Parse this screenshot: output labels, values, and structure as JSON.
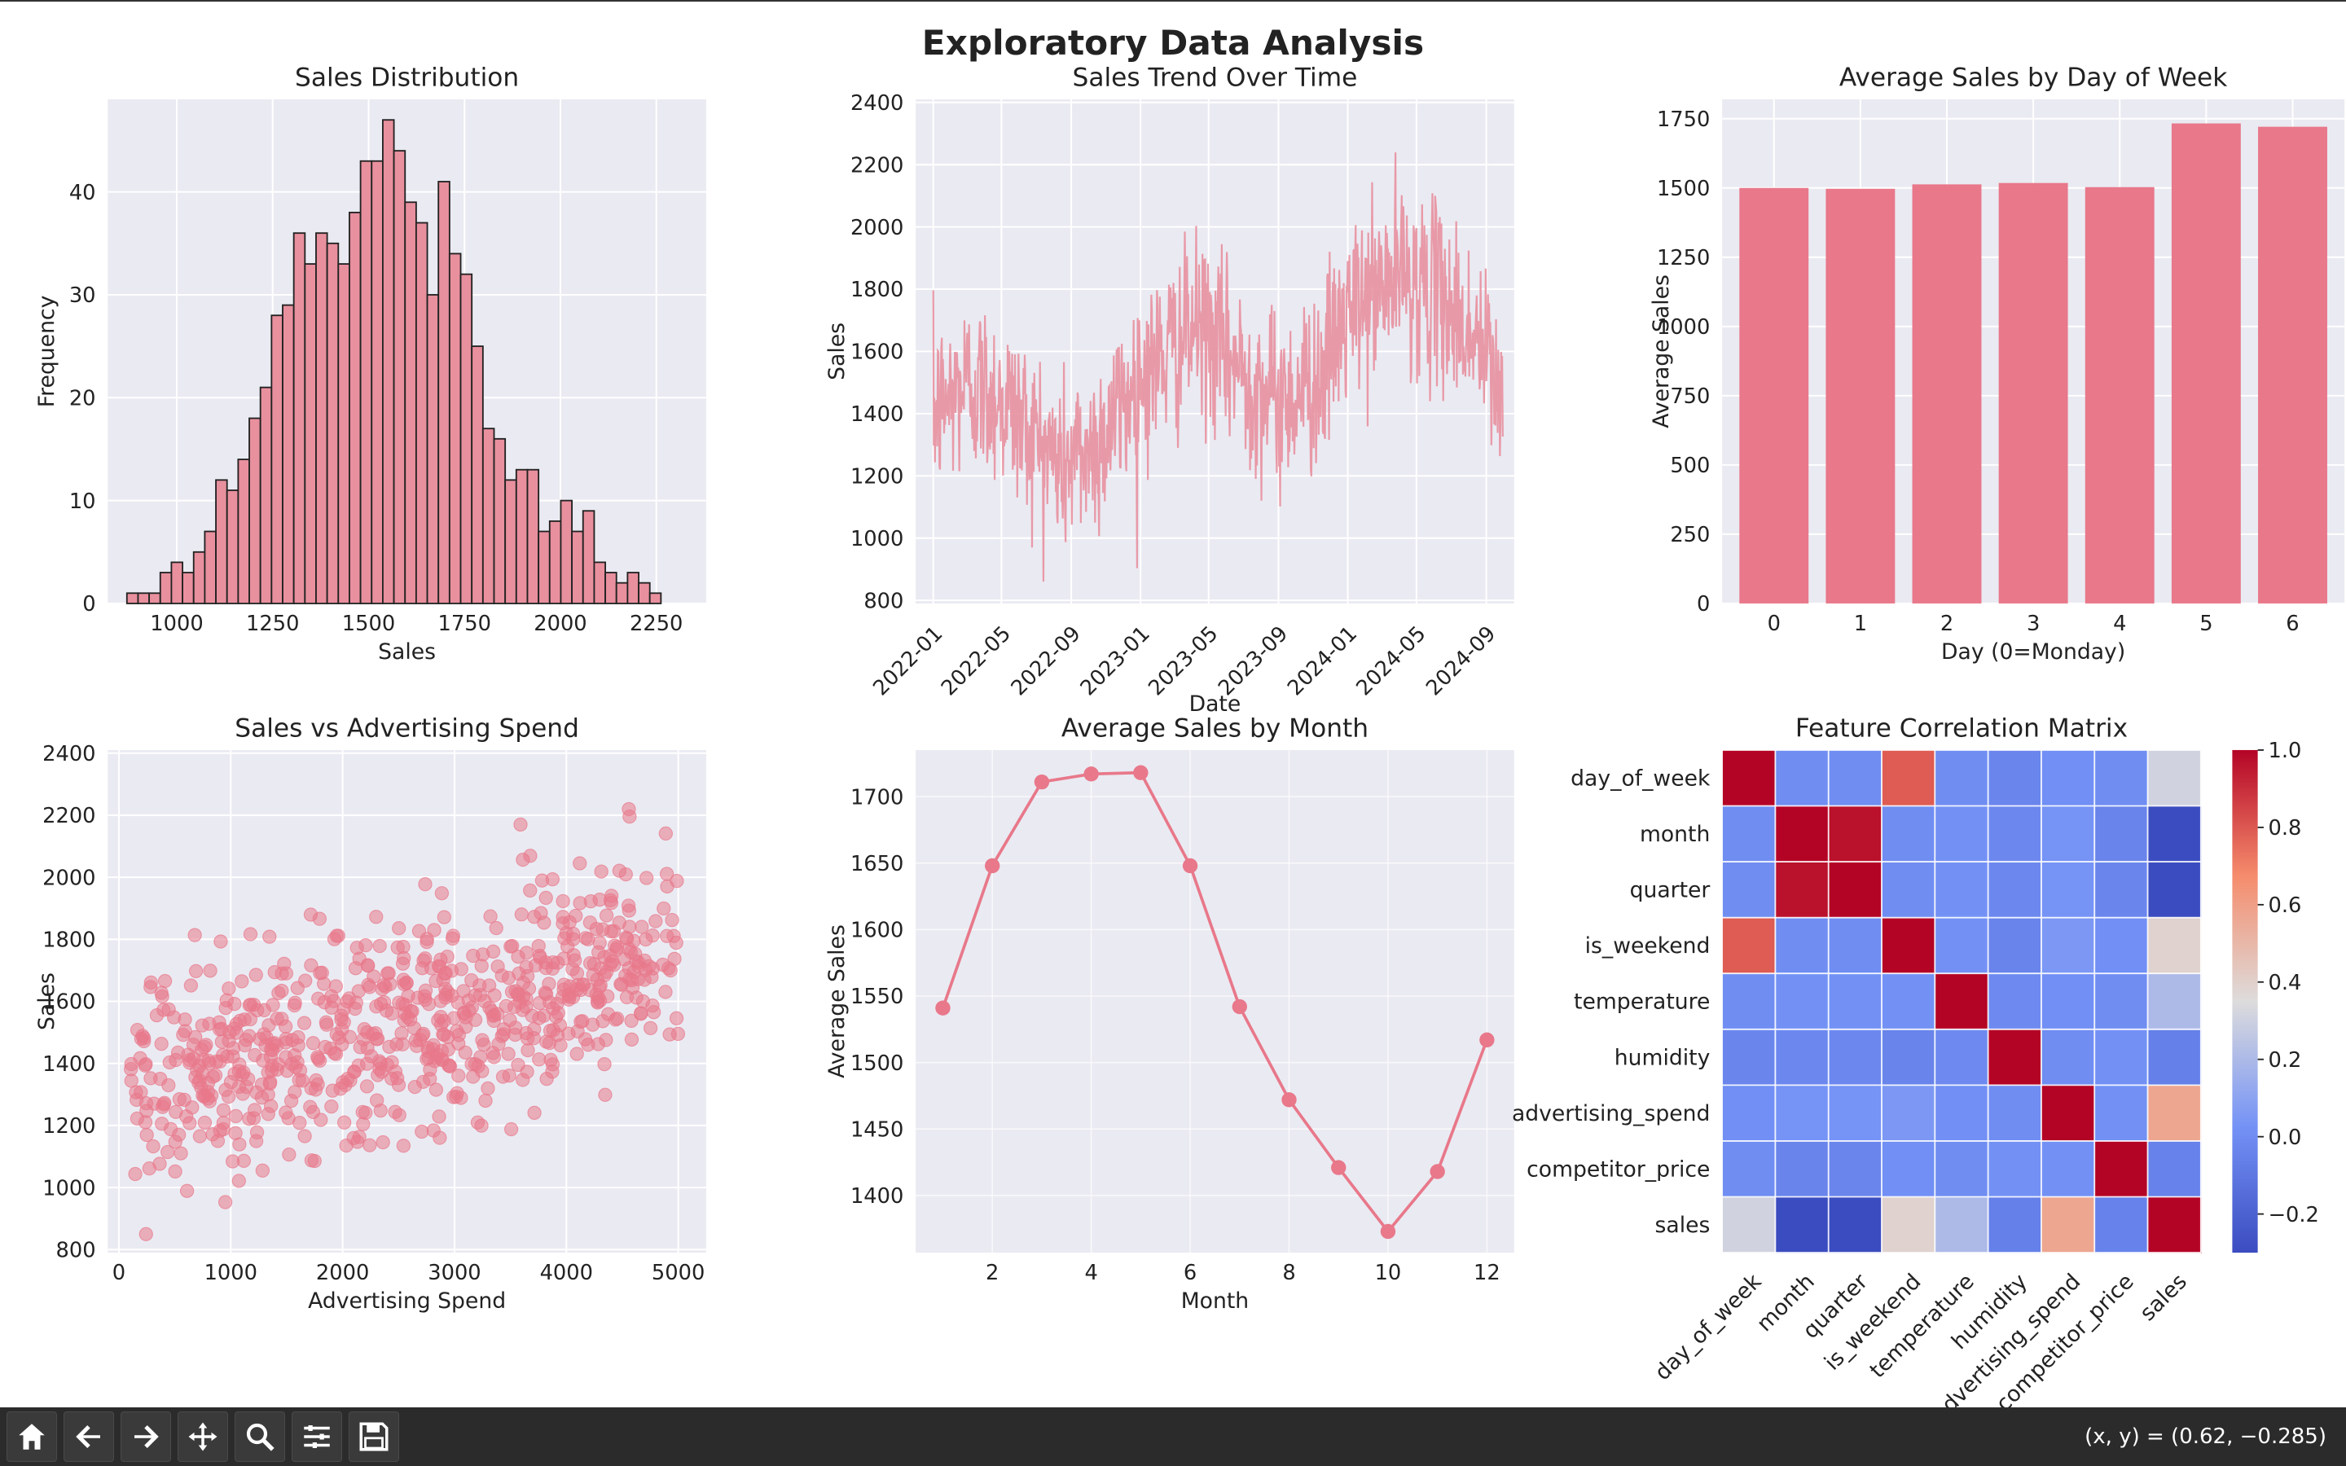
{
  "figure": {
    "suptitle": "Exploratory Data Analysis"
  },
  "toolbar": {
    "buttons": [
      "home-icon",
      "back-arrow-icon",
      "forward-arrow-icon",
      "pan-icon",
      "zoom-icon",
      "configure-subplots-icon",
      "save-icon"
    ],
    "coords": "(x, y) = (0.62, −0.285)"
  },
  "colors": {
    "accent": "#e8788a",
    "grid": "#ffffff",
    "panel": "#eaeaf2",
    "dark_red": "#b40426",
    "dark_blue": "#3b4cc0"
  },
  "chart_data": [
    {
      "type": "bar",
      "subtype": "histogram",
      "title": "Sales Distribution",
      "xlabel": "Sales",
      "ylabel": "Frequency",
      "xlim": [
        820,
        2380
      ],
      "ylim": [
        0,
        49
      ],
      "xticks": [
        1000,
        1250,
        1500,
        1750,
        2000,
        2250
      ],
      "yticks": [
        0,
        10,
        20,
        30,
        40
      ],
      "bin_start": 870,
      "bin_width": 29,
      "counts": [
        1,
        1,
        1,
        3,
        4,
        3,
        5,
        7,
        12,
        11,
        14,
        18,
        21,
        28,
        29,
        36,
        33,
        36,
        35,
        33,
        38,
        43,
        43,
        47,
        44,
        39,
        37,
        30,
        41,
        34,
        32,
        25,
        17,
        16,
        12,
        13,
        13,
        7,
        8,
        10,
        7,
        9,
        4,
        3,
        2,
        3,
        2,
        1
      ]
    },
    {
      "type": "line",
      "title": "Sales Trend Over Time",
      "xlabel": "Date",
      "ylabel": "Sales",
      "xlim": [
        "2021-12-01",
        "2024-10-20"
      ],
      "ylim": [
        790,
        2410
      ],
      "xticks": [
        "2022-01",
        "2022-05",
        "2022-09",
        "2023-01",
        "2023-05",
        "2023-09",
        "2024-01",
        "2024-05",
        "2024-09"
      ],
      "yticks": [
        800,
        1000,
        1200,
        1400,
        1600,
        1800,
        2000,
        2200,
        2400
      ],
      "series": [
        {
          "anchors": [
            [
              "2022-01-01",
              1400
            ],
            [
              "2022-03-01",
              1500
            ],
            [
              "2022-05-01",
              1450
            ],
            [
              "2022-08-15",
              1230
            ],
            [
              "2022-10-15",
              1300
            ],
            [
              "2023-01-01",
              1520
            ],
            [
              "2023-04-15",
              1680
            ],
            [
              "2023-06-15",
              1560
            ],
            [
              "2023-09-01",
              1430
            ],
            [
              "2023-11-15",
              1520
            ],
            [
              "2024-01-01",
              1720
            ],
            [
              "2024-04-01",
              1850
            ],
            [
              "2024-06-15",
              1780
            ],
            [
              "2024-09-01",
              1580
            ],
            [
              "2024-09-30",
              1450
            ]
          ],
          "amplitude": 260,
          "y_min": 860,
          "y_max": 2330
        }
      ]
    },
    {
      "type": "bar",
      "title": "Average Sales by Day of Week",
      "xlabel": "Day (0=Monday)",
      "ylabel": "Average Sales",
      "categories": [
        "0",
        "1",
        "2",
        "3",
        "4",
        "5",
        "6"
      ],
      "values": [
        1500,
        1497,
        1513,
        1518,
        1503,
        1733,
        1721
      ],
      "ylim": [
        0,
        1820
      ],
      "yticks": [
        0,
        250,
        500,
        750,
        1000,
        1250,
        1500,
        1750
      ]
    },
    {
      "type": "scatter",
      "title": "Sales vs Advertising Spend",
      "xlabel": "Advertising Spend",
      "ylabel": "Sales",
      "xlim": [
        -100,
        5250
      ],
      "ylim": [
        790,
        2410
      ],
      "xticks": [
        0,
        1000,
        2000,
        3000,
        4000,
        5000
      ],
      "yticks": [
        800,
        1000,
        1200,
        1400,
        1600,
        1800,
        2000,
        2200,
        2400
      ],
      "n_points": 730,
      "x_range": [
        100,
        5000
      ],
      "trend": {
        "intercept": 1300,
        "slope": 0.09
      },
      "spread": 180
    },
    {
      "type": "line",
      "title": "Average Sales by Month",
      "xlabel": "Month",
      "ylabel": "Average Sales",
      "x": [
        1,
        2,
        3,
        4,
        5,
        6,
        7,
        8,
        9,
        10,
        11,
        12
      ],
      "values": [
        1541,
        1648,
        1711,
        1717,
        1718,
        1648,
        1542,
        1472,
        1421,
        1373,
        1418,
        1517
      ],
      "xlim": [
        0.45,
        12.55
      ],
      "ylim": [
        1357,
        1735
      ],
      "xticks": [
        2,
        4,
        6,
        8,
        10,
        12
      ],
      "yticks": [
        1400,
        1450,
        1500,
        1550,
        1600,
        1650,
        1700
      ]
    },
    {
      "type": "heatmap",
      "title": "Feature Correlation Matrix",
      "labels": [
        "day_of_week",
        "month",
        "quarter",
        "is_weekend",
        "temperature",
        "humidity",
        "advertising_spend",
        "competitor_price",
        "sales"
      ],
      "matrix": [
        [
          1.0,
          0.0,
          0.0,
          0.79,
          0.0,
          -0.03,
          0.01,
          0.0,
          0.31
        ],
        [
          0.0,
          1.0,
          0.97,
          0.0,
          0.02,
          -0.02,
          0.03,
          -0.04,
          -0.3
        ],
        [
          0.0,
          0.97,
          1.0,
          0.0,
          0.02,
          -0.02,
          0.03,
          -0.03,
          -0.3
        ],
        [
          0.79,
          0.0,
          0.0,
          1.0,
          0.02,
          -0.04,
          0.05,
          0.01,
          0.39
        ],
        [
          0.0,
          0.02,
          0.02,
          0.02,
          1.0,
          -0.01,
          0.01,
          0.0,
          0.2
        ],
        [
          -0.03,
          -0.02,
          -0.02,
          -0.04,
          -0.01,
          1.0,
          0.0,
          0.02,
          -0.06
        ],
        [
          0.01,
          0.03,
          0.03,
          0.05,
          0.01,
          0.0,
          1.0,
          0.02,
          0.57
        ],
        [
          0.0,
          -0.04,
          -0.03,
          0.01,
          0.0,
          0.02,
          0.02,
          1.0,
          -0.05
        ],
        [
          0.31,
          -0.3,
          -0.3,
          0.39,
          0.2,
          -0.06,
          0.57,
          -0.05,
          1.0
        ]
      ],
      "colorbar": {
        "vmin": -0.3,
        "vmax": 1.0,
        "ticks": [
          -0.2,
          0.0,
          0.2,
          0.4,
          0.6,
          0.8,
          1.0
        ],
        "colormap": "coolwarm"
      }
    }
  ]
}
